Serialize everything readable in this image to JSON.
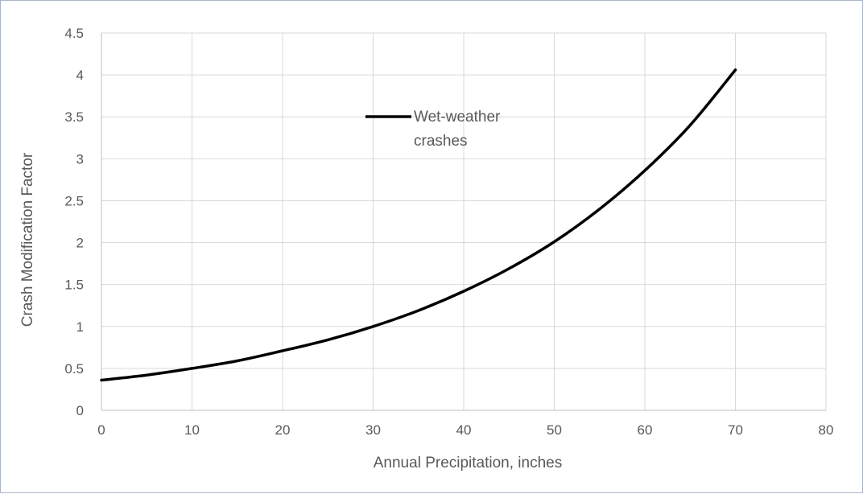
{
  "chart_data": {
    "type": "line",
    "xlabel": "Annual Precipitation, inches",
    "ylabel": "Crash Modification Factor",
    "xlim": [
      0,
      80
    ],
    "ylim": [
      0,
      4.5
    ],
    "x_ticks": [
      "0",
      "10",
      "20",
      "30",
      "40",
      "50",
      "60",
      "70",
      "80"
    ],
    "y_ticks": [
      "0",
      "0.5",
      "1",
      "1.5",
      "2",
      "2.5",
      "3",
      "3.5",
      "4",
      "4.5"
    ],
    "grid": "vertical and horizontal",
    "legend": {
      "placement": "top-center",
      "entries": [
        "Wet-weather",
        "crashes"
      ]
    },
    "series": [
      {
        "name": "Wet-weather crashes",
        "color": "#000000",
        "x": [
          0,
          5,
          10,
          15,
          20,
          25,
          30,
          35,
          40,
          45,
          50,
          55,
          60,
          65,
          70
        ],
        "y": [
          0.36,
          0.42,
          0.5,
          0.59,
          0.71,
          0.84,
          1.0,
          1.19,
          1.42,
          1.69,
          2.01,
          2.4,
          2.86,
          3.4,
          4.06
        ]
      }
    ]
  }
}
